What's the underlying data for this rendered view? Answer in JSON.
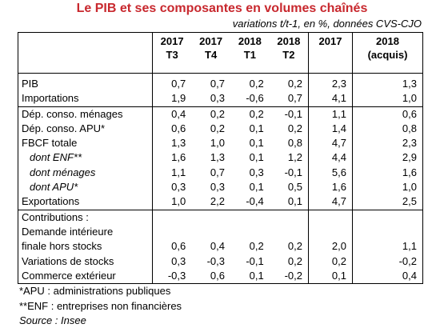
{
  "header": {
    "title": "Le PIB et ses composantes en volumes chaînés",
    "subtitle": "variations t/t-1, en %, données CVS-CJO"
  },
  "table": {
    "columns": [
      "2017\nT3",
      "2017\nT4",
      "2018\nT1",
      "2018\nT2",
      "2017",
      "2018\n(acquis)"
    ],
    "rows": [
      {
        "label": "PIB",
        "values": [
          "0,7",
          "0,7",
          "0,2",
          "0,2",
          "2,3",
          "1,3"
        ]
      },
      {
        "label": "Importations",
        "values": [
          "1,9",
          "0,3",
          "-0,6",
          "0,7",
          "4,1",
          "1,0"
        ]
      },
      {
        "label": "Dép. conso. ménages",
        "values": [
          "0,4",
          "0,2",
          "0,2",
          "-0,1",
          "1,1",
          "0,6"
        ]
      },
      {
        "label": "Dép. conso. APU*",
        "values": [
          "0,6",
          "0,2",
          "0,1",
          "0,2",
          "1,4",
          "0,8"
        ]
      },
      {
        "label": "FBCF totale",
        "values": [
          "1,3",
          "1,0",
          "0,1",
          "0,8",
          "4,7",
          "2,3"
        ]
      },
      {
        "label": "dont ENF**",
        "values": [
          "1,6",
          "1,3",
          "0,1",
          "1,2",
          "4,4",
          "2,9"
        ]
      },
      {
        "label": "dont ménages",
        "values": [
          "1,1",
          "0,7",
          "0,3",
          "-0,1",
          "5,6",
          "1,6"
        ]
      },
      {
        "label": "dont APU*",
        "values": [
          "0,3",
          "0,3",
          "0,1",
          "0,5",
          "1,6",
          "1,0"
        ]
      },
      {
        "label": "Exportations",
        "values": [
          "1,0",
          "2,2",
          "-0,4",
          "0,1",
          "4,7",
          "2,5"
        ]
      },
      {
        "label": "Contributions :"
      },
      {
        "label": "Demande intérieure\nfinale hors stocks",
        "values": [
          "0,6",
          "0,4",
          "0,2",
          "0,2",
          "2,0",
          "1,1"
        ]
      },
      {
        "label": "Variations de stocks",
        "values": [
          "0,3",
          "-0,3",
          "-0,1",
          "0,2",
          "0,2",
          "-0,2"
        ]
      },
      {
        "label": "Commerce extérieur",
        "values": [
          "-0,3",
          "0,6",
          "0,1",
          "-0,2",
          "0,1",
          "0,4"
        ]
      }
    ]
  },
  "notes": [
    "*APU : administrations publiques",
    "**ENF : entreprises non financières",
    "Source : Insee"
  ]
}
